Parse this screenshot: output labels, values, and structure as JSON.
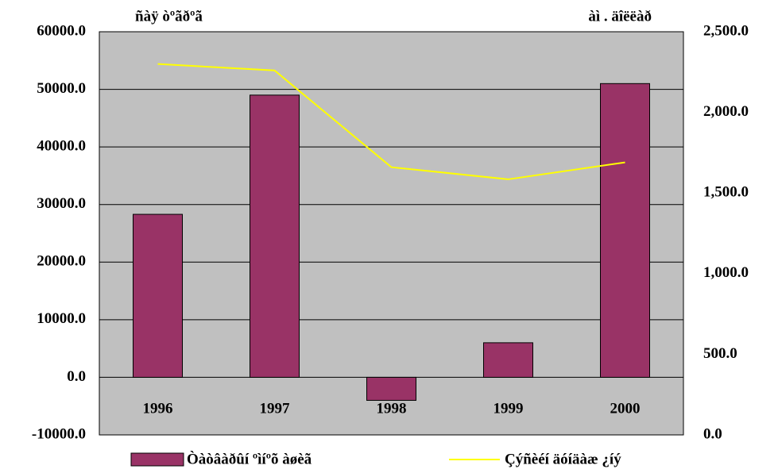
{
  "chart_data": {
    "type": "bar",
    "y_label": "ñàÿ òºãðºã",
    "y2_label": "àì . äîëëàð",
    "categories": [
      "1996",
      "1997",
      "1998",
      "1999",
      "2000"
    ],
    "series": [
      {
        "name": "Òàòâàðûí ºìíºõ àøèã",
        "type": "bar",
        "color": "#993366",
        "values": [
          28300,
          49000,
          -4000,
          6000,
          51000
        ]
      },
      {
        "name": "Çýñèéí äóíäàæ ¿íý",
        "type": "line",
        "axis": "y2",
        "color": "#ffff00",
        "values": [
          2300,
          2260,
          1660,
          1585,
          1690
        ]
      }
    ],
    "ylim": [
      -10000,
      60000
    ],
    "yticks": [
      {
        "value": -10000,
        "label": "-10000.0"
      },
      {
        "value": 0,
        "label": "0.0"
      },
      {
        "value": 10000,
        "label": "10000.0"
      },
      {
        "value": 20000,
        "label": "20000.0"
      },
      {
        "value": 30000,
        "label": "30000.0"
      },
      {
        "value": 40000,
        "label": "40000.0"
      },
      {
        "value": 50000,
        "label": "50000.0"
      },
      {
        "value": 60000,
        "label": "60000.0"
      }
    ],
    "y2lim": [
      0,
      2500
    ],
    "y2ticks": [
      {
        "value": 0,
        "label": "0.0"
      },
      {
        "value": 500,
        "label": "500.0"
      },
      {
        "value": 1000,
        "label": "1,000.0"
      },
      {
        "value": 1500,
        "label": "1,500.0"
      },
      {
        "value": 2000,
        "label": "2,000.0"
      },
      {
        "value": 2500,
        "label": "2,500.0"
      }
    ],
    "grid": true,
    "legend": "bottom"
  }
}
